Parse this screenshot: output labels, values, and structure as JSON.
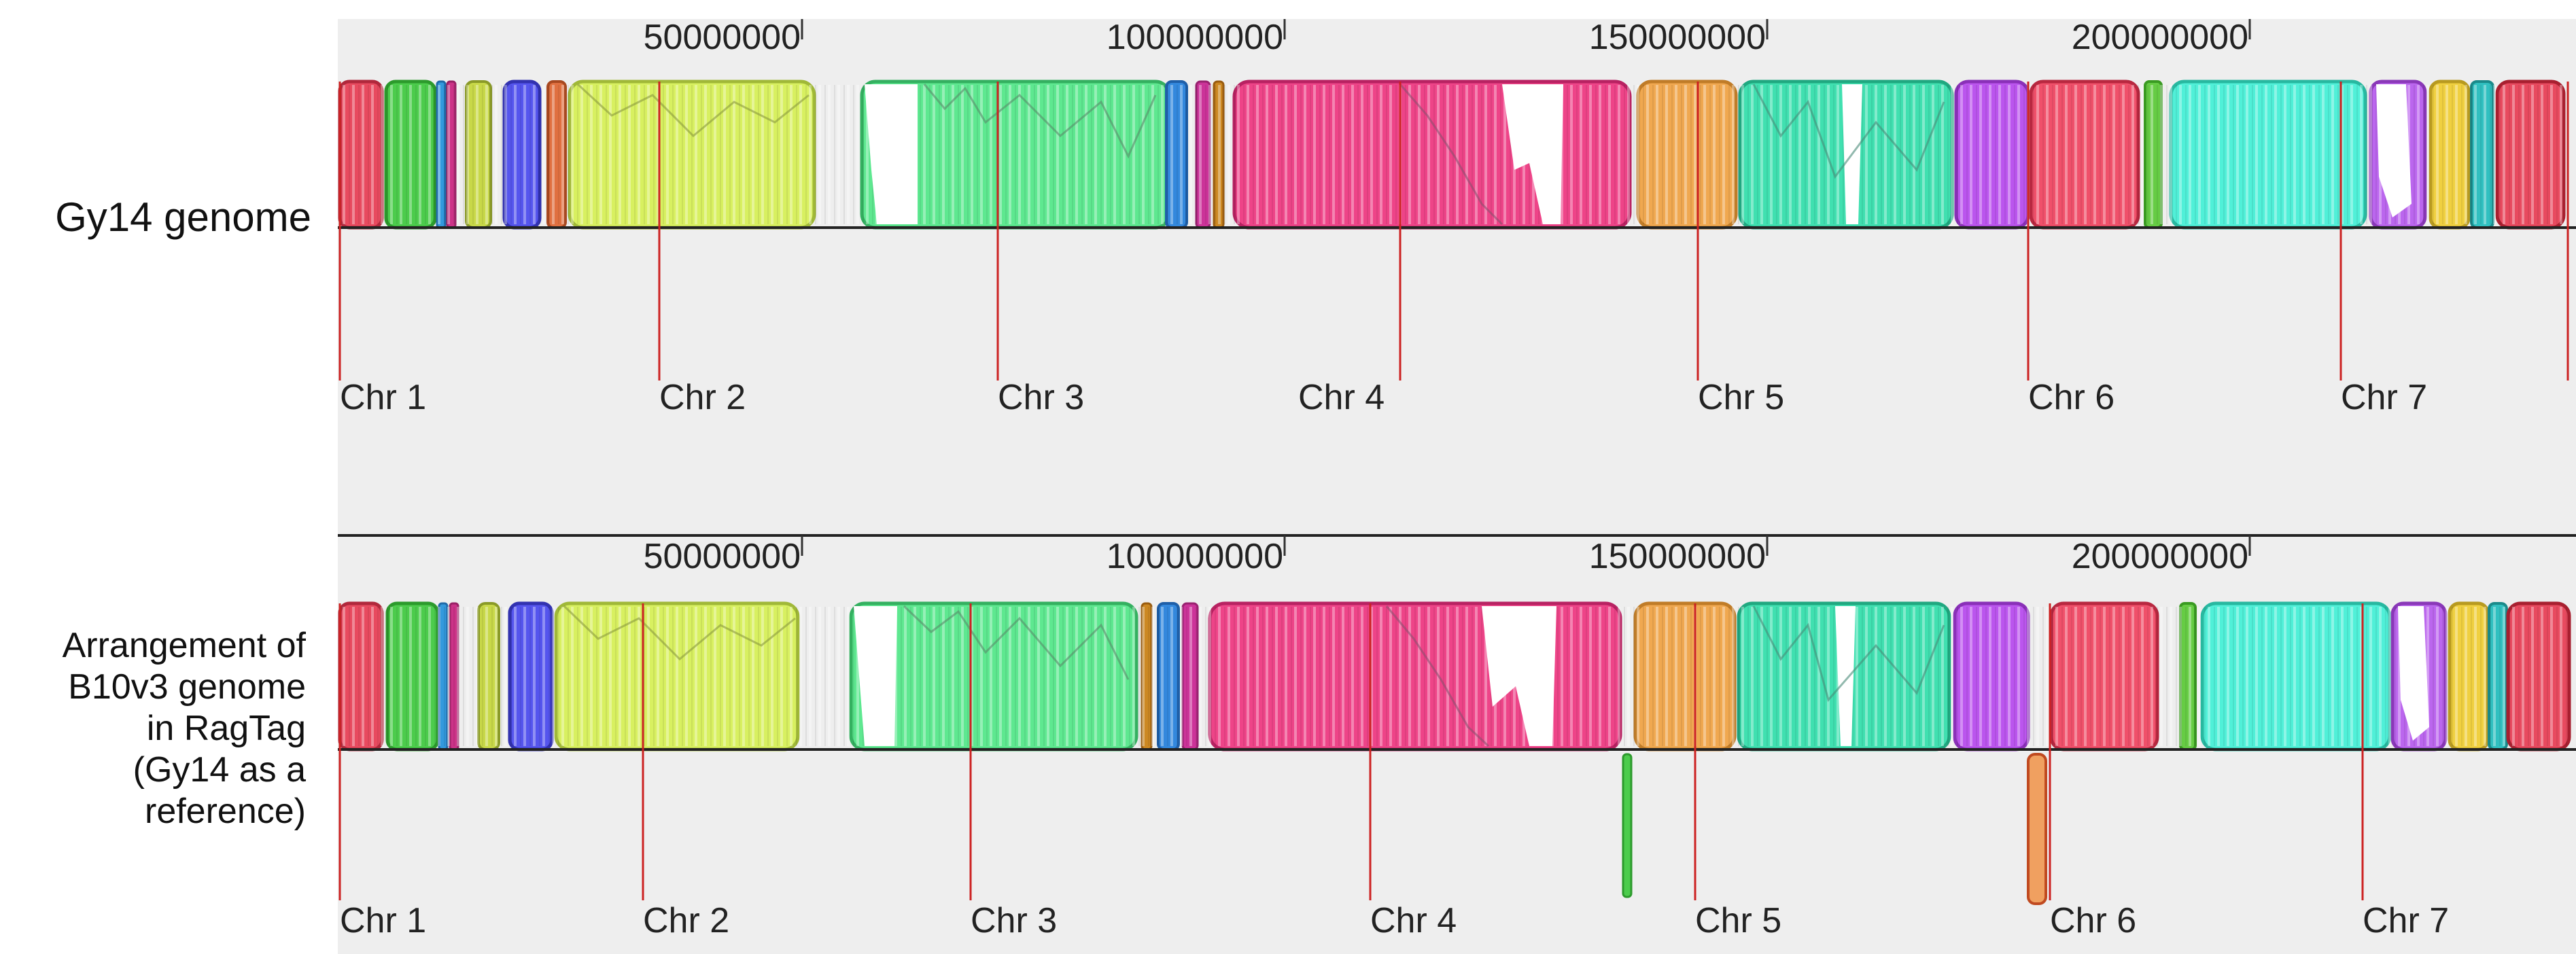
{
  "tracks": [
    {
      "label": "Gy14 genome",
      "ticks": [
        "50000000",
        "100000000",
        "150000000",
        "200000000"
      ],
      "chromosomes": [
        "Chr 1",
        "Chr 2",
        "Chr 3",
        "Chr 4",
        "Chr 5",
        "Chr 6",
        "Chr 7"
      ]
    },
    {
      "label_lines": [
        "Arrangement of",
        "B10v3 genome",
        "in RagTag",
        "(Gy14 as a",
        "reference)"
      ],
      "ticks": [
        "50000000",
        "100000000",
        "150000000",
        "200000000"
      ],
      "chromosomes": [
        "Chr 1",
        "Chr 2",
        "Chr 3",
        "Chr 4",
        "Chr 5",
        "Chr 6",
        "Chr 7"
      ]
    }
  ],
  "colors": {
    "panel_bg": "#eeeeee",
    "boundary": "#cc2222",
    "red": "#e84a5f",
    "green": "#4ccc4c",
    "lime": "#d8f060",
    "mint": "#5ee890",
    "blue": "#5555ee",
    "pink": "#ee4488",
    "orange": "#f0a850",
    "teal": "#40e0b0",
    "cyan": "#50f0d8",
    "purple": "#bb55ee",
    "yellow": "#f0d040"
  }
}
